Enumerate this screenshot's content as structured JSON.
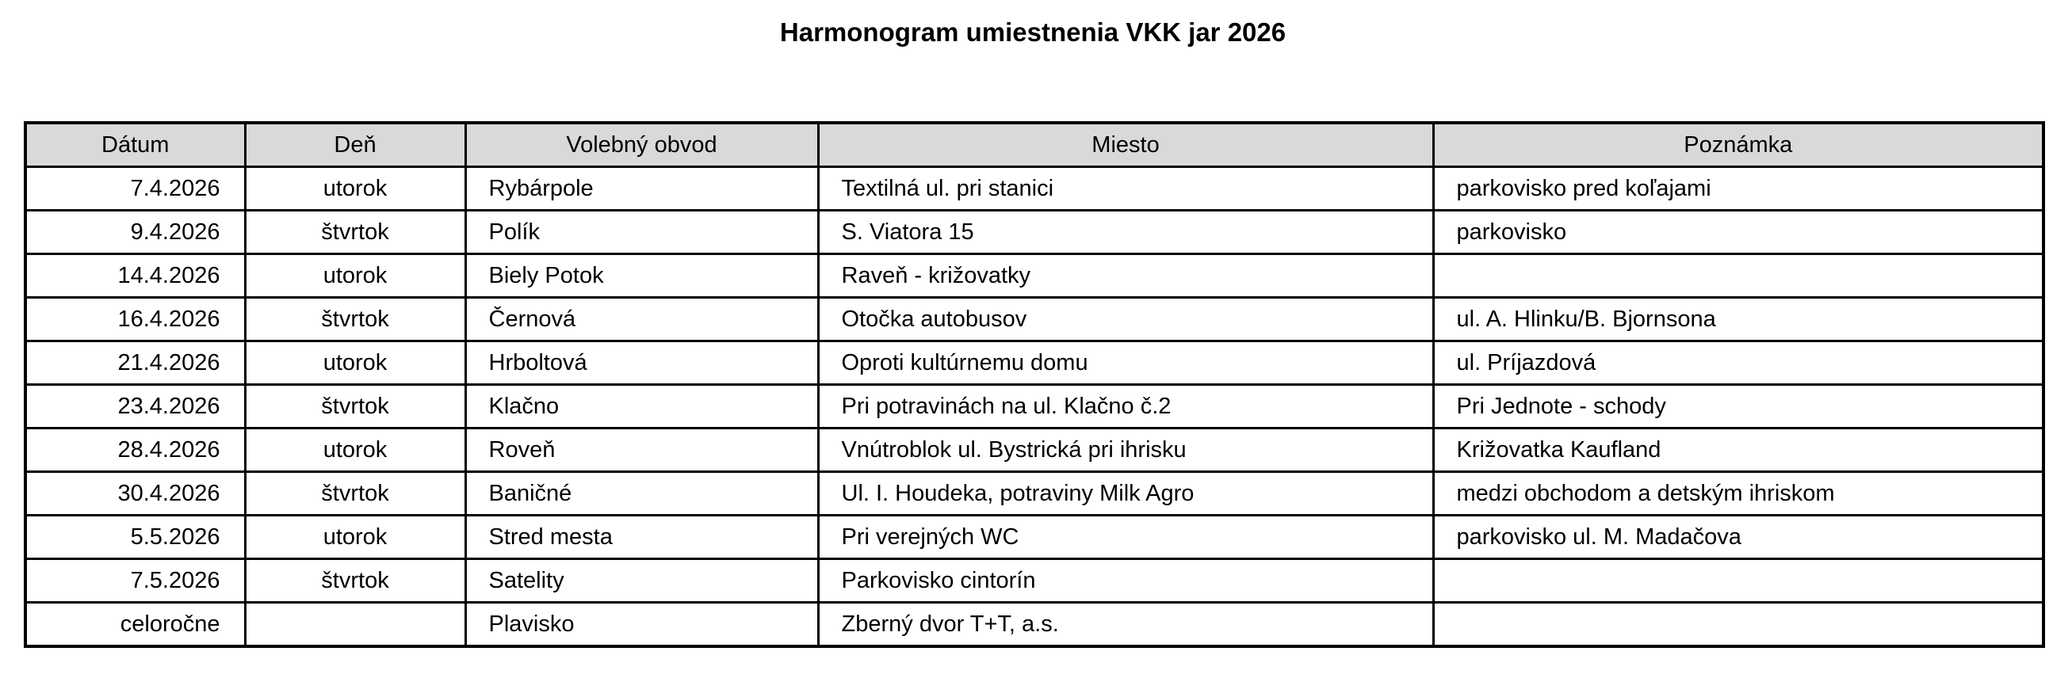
{
  "page": {
    "title": "Harmonogram umiestnenia VKK jar 2026"
  },
  "colors": {
    "header_background": "#d9d9d9",
    "border": "#000000",
    "page_background": "#ffffff"
  },
  "table": {
    "columns": [
      "Dátum",
      "Deň",
      "Volebný obvod",
      "Miesto",
      "Poznámka"
    ],
    "rows": [
      [
        "7.4.2026",
        "utorok",
        "Rybárpole",
        "Textilná ul. pri stanici",
        "parkovisko pred koľajami"
      ],
      [
        "9.4.2026",
        "štvrtok",
        "Polík",
        "S. Viatora 15",
        "parkovisko"
      ],
      [
        "14.4.2026",
        "utorok",
        "Biely Potok",
        "Raveň - križovatky",
        ""
      ],
      [
        "16.4.2026",
        "štvrtok",
        "Černová",
        "Otočka autobusov",
        "ul. A. Hlinku/B. Bjornsona"
      ],
      [
        "21.4.2026",
        "utorok",
        "Hrboltová",
        "Oproti kultúrnemu domu",
        "ul. Príjazdová"
      ],
      [
        "23.4.2026",
        "štvrtok",
        "Klačno",
        "Pri potravinách na ul. Klačno č.2",
        "Pri Jednote - schody"
      ],
      [
        "28.4.2026",
        "utorok",
        "Roveň",
        "Vnútroblok ul. Bystrická pri ihrisku",
        "Križovatka Kaufland"
      ],
      [
        "30.4.2026",
        "štvrtok",
        "Baničné",
        "Ul. I. Houdeka, potraviny Milk Agro",
        "medzi obchodom a detským ihriskom"
      ],
      [
        "5.5.2026",
        "utorok",
        "Stred mesta",
        "Pri verejných WC",
        "parkovisko ul. M. Madačova"
      ],
      [
        "7.5.2026",
        "štvrtok",
        "Satelity",
        "Parkovisko cintorín",
        ""
      ],
      [
        "celoročne",
        "",
        "Plavisko",
        "Zberný dvor T+T, a.s.",
        ""
      ]
    ]
  }
}
